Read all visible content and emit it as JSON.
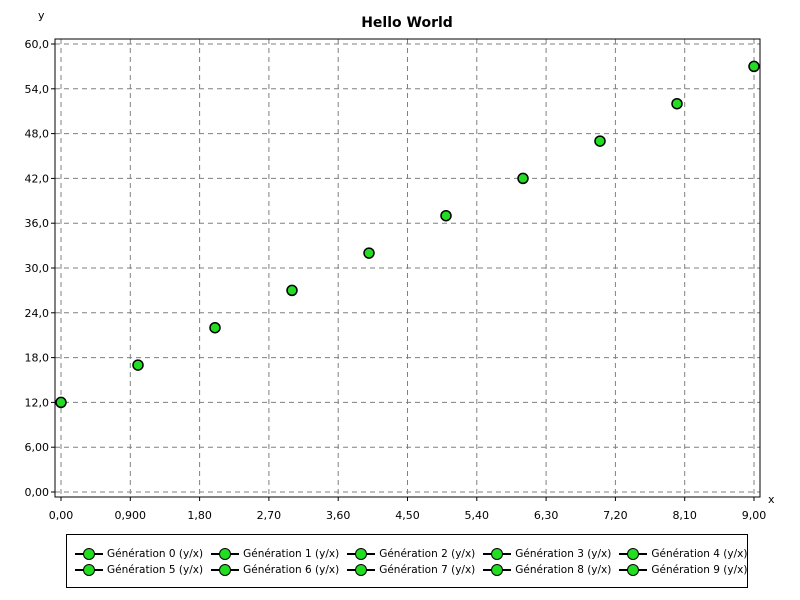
{
  "chart_data": {
    "type": "scatter",
    "title": "Hello World",
    "xlabel": "x",
    "ylabel": "y",
    "xlim": [
      0,
      9
    ],
    "ylim": [
      0,
      60
    ],
    "grid": true,
    "legend_position": "bottom",
    "x_ticks": [
      "0,00",
      "0,900",
      "1,80",
      "2,70",
      "3,60",
      "4,50",
      "5,40",
      "6,30",
      "7,20",
      "8,10",
      "9,00"
    ],
    "y_ticks": [
      "0,00",
      "6,00",
      "12,0",
      "18,0",
      "24,0",
      "30,0",
      "36,0",
      "42,0",
      "48,0",
      "54,0",
      "60,0"
    ],
    "x_tick_values": [
      0,
      0.9,
      1.8,
      2.7,
      3.6,
      4.5,
      5.4,
      6.3,
      7.2,
      8.1,
      9.0
    ],
    "y_tick_values": [
      0,
      6,
      12,
      18,
      24,
      30,
      36,
      42,
      48,
      54,
      60
    ],
    "marker_color": "#22dd22",
    "marker_edge_color": "#000000",
    "series": [
      {
        "name": "Génération 0 (y/x)",
        "x": [
          0
        ],
        "y": [
          12
        ]
      },
      {
        "name": "Génération 1 (y/x)",
        "x": [
          1
        ],
        "y": [
          17
        ]
      },
      {
        "name": "Génération 2 (y/x)",
        "x": [
          2
        ],
        "y": [
          22
        ]
      },
      {
        "name": "Génération 3 (y/x)",
        "x": [
          3
        ],
        "y": [
          27
        ]
      },
      {
        "name": "Génération 4 (y/x)",
        "x": [
          4
        ],
        "y": [
          32
        ]
      },
      {
        "name": "Génération 5 (y/x)",
        "x": [
          5
        ],
        "y": [
          37
        ]
      },
      {
        "name": "Génération 6 (y/x)",
        "x": [
          6
        ],
        "y": [
          42
        ]
      },
      {
        "name": "Génération 7 (y/x)",
        "x": [
          7
        ],
        "y": [
          47
        ]
      },
      {
        "name": "Génération 8 (y/x)",
        "x": [
          8
        ],
        "y": [
          52
        ]
      },
      {
        "name": "Génération 9 (y/x)",
        "x": [
          9
        ],
        "y": [
          57
        ]
      }
    ]
  }
}
